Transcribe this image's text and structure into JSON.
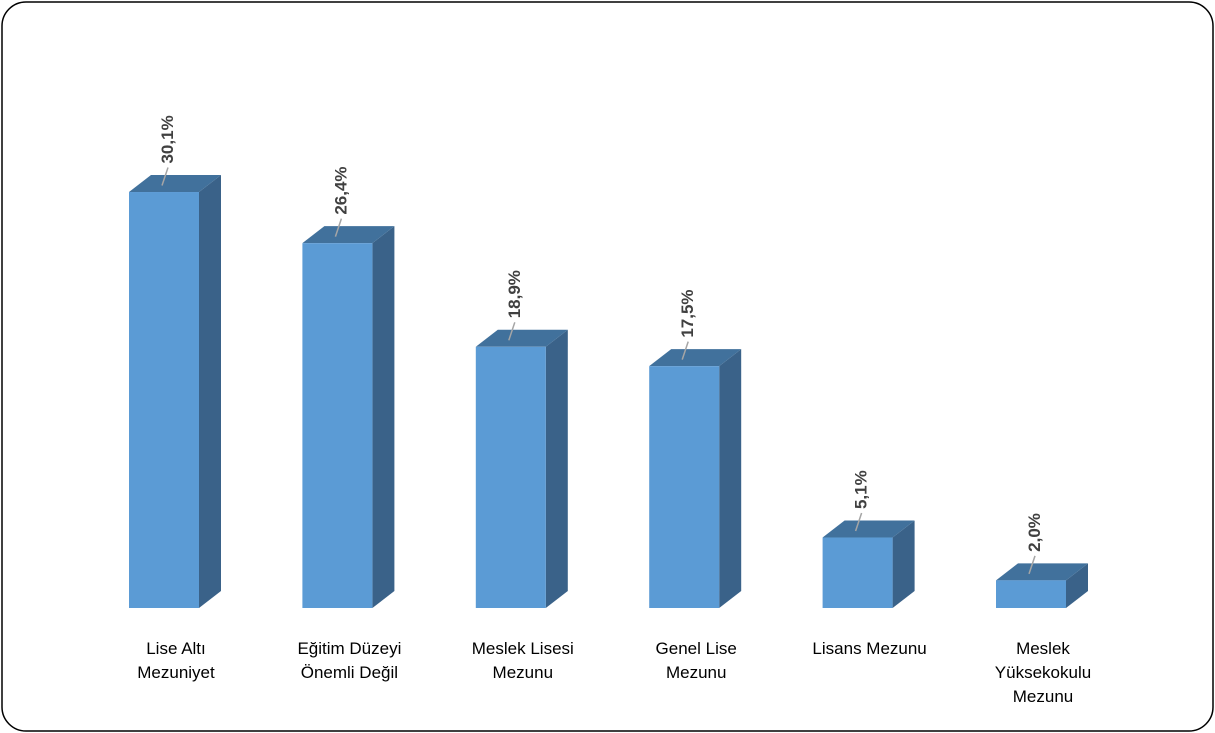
{
  "chart_data": {
    "type": "bar",
    "style": "3d-column",
    "categories": [
      "Lise Altı Mezuniyet",
      "Eğitim Düzeyi Önemli Değil",
      "Meslek Lisesi Mezunu",
      "Genel Lise Mezunu",
      "Lisans Mezunu",
      "Meslek Yüksekokulu Mezunu"
    ],
    "category_label_lines": [
      [
        "Lise Altı",
        "Mezuniyet"
      ],
      [
        "Eğitim Düzeyi",
        "Önemli Değil"
      ],
      [
        "Meslek Lisesi",
        "Mezunu"
      ],
      [
        "Genel Lise",
        "Mezunu"
      ],
      [
        "Lisans Mezunu"
      ],
      [
        "Meslek",
        "Yüksekokulu",
        "Mezunu"
      ]
    ],
    "values": [
      30.1,
      26.4,
      18.9,
      17.5,
      5.1,
      2.0
    ],
    "data_labels": [
      "30,1%",
      "26,4%",
      "18,9%",
      "17,5%",
      "5,1%",
      "2,0%"
    ],
    "ylim": [
      0,
      35
    ],
    "grid": false,
    "legend": "none",
    "colors": {
      "front": "#5B9BD5",
      "side": "#3A6289",
      "top": "#41719C",
      "leader": "#A5A5A5",
      "frame": "#000000"
    }
  }
}
